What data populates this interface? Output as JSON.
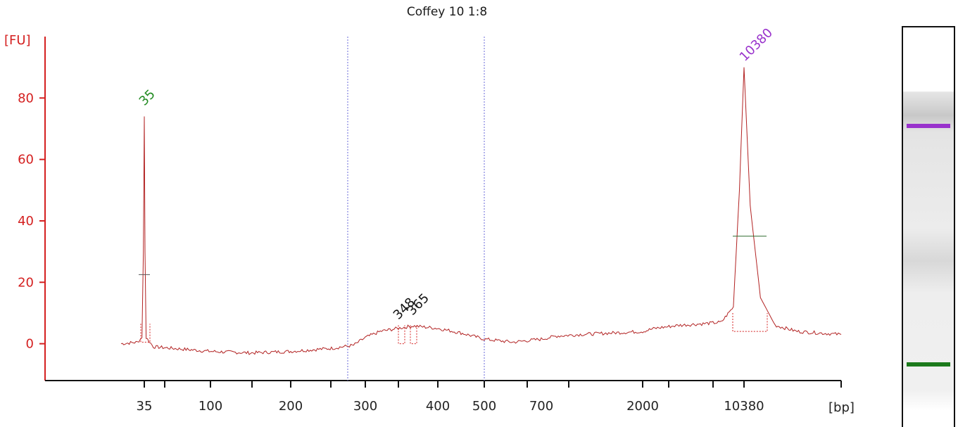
{
  "chart_data": {
    "type": "line",
    "title": "Coffey 10 1:8",
    "ylabel": "[FU]",
    "xlabel": "[bp]",
    "ylim": [
      -12,
      100
    ],
    "y_ticks": [
      0,
      20,
      40,
      60,
      80
    ],
    "x_tick_labels": [
      "35",
      "100",
      "200",
      "300",
      "400",
      "500",
      "700",
      "2000",
      "10380"
    ],
    "grid": false,
    "series": [
      {
        "color": "#b22222",
        "x": [
          25,
          32,
          34,
          34.6,
          35,
          35.4,
          36,
          40,
          60,
          80,
          100,
          150,
          200,
          250,
          280,
          300,
          320,
          348,
          365,
          400,
          450,
          500,
          600,
          700,
          900,
          1200,
          2000,
          3000,
          5000,
          7000,
          8500,
          9500,
          10000,
          10380,
          10800,
          11500,
          12500,
          14000,
          17000
        ],
        "values": [
          0,
          0.5,
          2,
          30,
          74,
          30,
          2,
          -1,
          -1.5,
          -2,
          -2.5,
          -3,
          -2.5,
          -1.5,
          -0.5,
          2,
          4,
          5.2,
          5.8,
          5,
          3.5,
          1.5,
          0.5,
          1.5,
          2.5,
          3,
          4,
          5,
          6,
          6.5,
          7,
          12,
          50,
          90,
          45,
          15,
          6,
          4,
          3
        ]
      }
    ],
    "peaks": [
      {
        "label": "35",
        "x": 35,
        "value": 74,
        "color": "#228b22"
      },
      {
        "label": "348",
        "x": 348,
        "value": 5.2,
        "color": "#111111"
      },
      {
        "label": "365",
        "x": 365,
        "value": 5.8,
        "color": "#111111"
      },
      {
        "label": "10380",
        "x": 10380,
        "value": 90,
        "color": "#9932cc"
      }
    ],
    "region_lines_x": [
      270,
      500
    ],
    "colors": {
      "axis": "#d42020",
      "trace": "#b22222",
      "region_line": "#6a6ad8",
      "upper_marker": "#9932cc",
      "lower_marker": "#1c7a1c"
    }
  }
}
